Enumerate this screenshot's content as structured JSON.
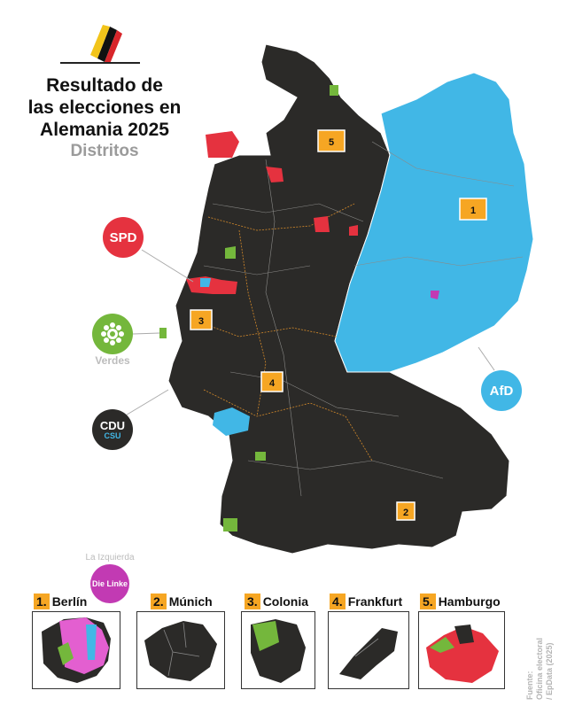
{
  "header": {
    "title_lines": [
      "Resultado de",
      "las elecciones en",
      "Alemania 2025"
    ],
    "subtitle": "Distritos"
  },
  "parties": {
    "spd": {
      "label": "SPD",
      "color": "#e5323f"
    },
    "verdes": {
      "label": "Verdes",
      "color": "#74b73c"
    },
    "cdu": {
      "label": "CDU",
      "sublabel": "CSU",
      "color": "#2b2a28"
    },
    "afd": {
      "label": "AfD",
      "color": "#41b7e6"
    },
    "linke": {
      "label": "Die Linke",
      "caption": "La Izquierda",
      "color": "#c23ab3"
    }
  },
  "map_markers": [
    {
      "number": "1",
      "city": "Berlín"
    },
    {
      "number": "2",
      "city": "Múnich"
    },
    {
      "number": "3",
      "city": "Colonia"
    },
    {
      "number": "4",
      "city": "Frankfurt"
    },
    {
      "number": "5",
      "city": "Hamburgo"
    }
  ],
  "insets": [
    {
      "number": "1.",
      "city": "Berlín"
    },
    {
      "number": "2.",
      "city": "Múnich"
    },
    {
      "number": "3.",
      "city": "Colonia"
    },
    {
      "number": "4.",
      "city": "Frankfurt"
    },
    {
      "number": "5.",
      "city": "Hamburgo"
    }
  ],
  "source": {
    "line1": "Fuente:",
    "line2": "Oficina electoral",
    "line3": "/ EpData (2025)"
  }
}
